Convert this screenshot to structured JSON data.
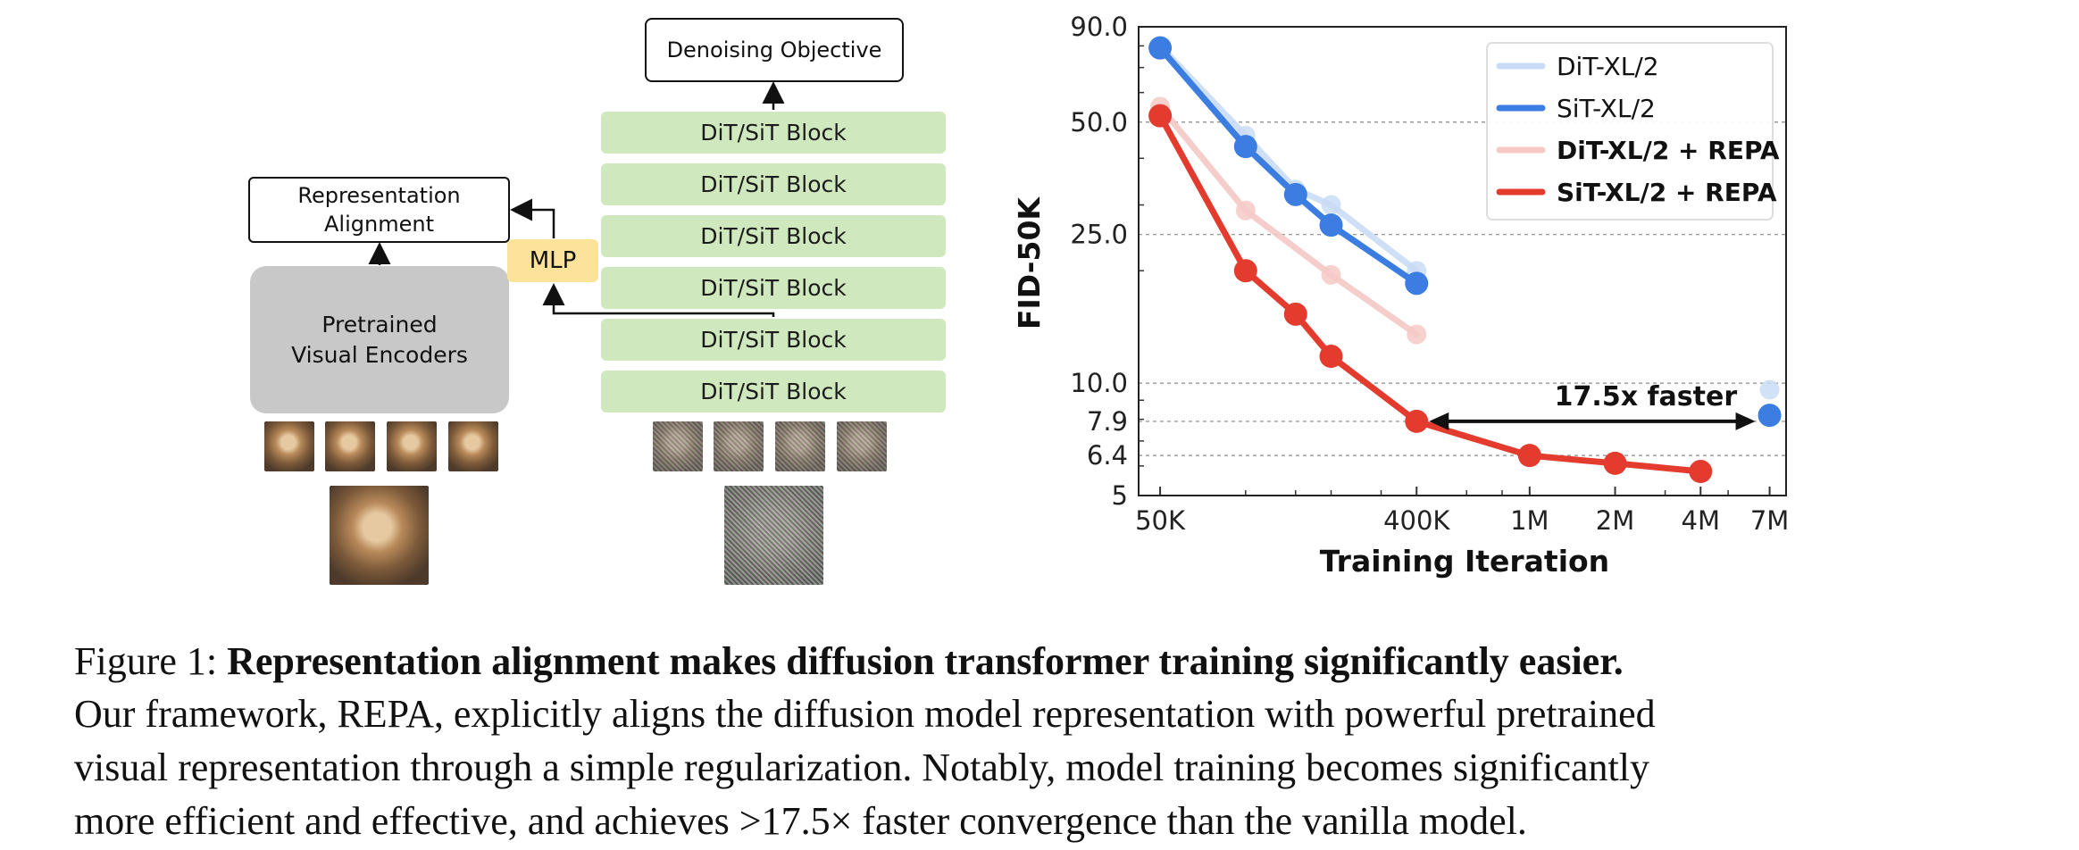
{
  "diagram": {
    "objective": "Denoising Objective",
    "blocks": [
      "DiT/SiT Block",
      "DiT/SiT Block",
      "DiT/SiT Block",
      "DiT/SiT Block",
      "DiT/SiT Block",
      "DiT/SiT Block"
    ],
    "representation_alignment": "Representation\nAlignment",
    "encoder": "Pretrained\nVisual Encoders",
    "mlp": "MLP"
  },
  "chart_data": {
    "type": "line",
    "xlabel": "Training Iteration",
    "ylabel": "FID-50K",
    "xscale": "log",
    "yscale": "log",
    "xlim": [
      42000,
      8000000
    ],
    "ylim": [
      5,
      90
    ],
    "x_ticks": [
      "50K",
      "400K",
      "1M",
      "2M",
      "4M",
      "7M"
    ],
    "x_tick_values": [
      50000,
      400000,
      1000000,
      2000000,
      4000000,
      7000000
    ],
    "y_ticks": [
      "90.0",
      "50.0",
      "25.0",
      "10.0",
      "7.9",
      "6.4",
      "5"
    ],
    "y_tick_values": [
      90,
      50,
      25,
      10,
      7.9,
      6.4,
      5
    ],
    "grid": true,
    "legend": "top-right",
    "series": [
      {
        "name": "DiT-XL/2",
        "color": "#c9dcf5",
        "x": [
          50000,
          100000,
          150000,
          200000,
          400000,
          7000000
        ],
        "y": [
          80,
          46,
          33,
          30,
          20,
          9.6
        ]
      },
      {
        "name": "SiT-XL/2",
        "color": "#3b7de0",
        "x": [
          50000,
          100000,
          150000,
          200000,
          400000,
          7000000
        ],
        "y": [
          79,
          43,
          32,
          26.5,
          18.5,
          8.2
        ]
      },
      {
        "name": "DiT-XL/2 + REPA",
        "color": "#f4c9c6",
        "x": [
          50000,
          100000,
          200000,
          400000
        ],
        "y": [
          55,
          29,
          19.5,
          13.5
        ]
      },
      {
        "name": "SiT-XL/2 + REPA",
        "color": "#e33b2e",
        "x": [
          50000,
          100000,
          150000,
          200000,
          400000,
          1000000,
          2000000,
          4000000
        ],
        "y": [
          52,
          20,
          15.3,
          11.8,
          7.9,
          6.4,
          6.1,
          5.8
        ]
      }
    ],
    "annotation": {
      "text": "17.5x faster",
      "from": [
        400000,
        7.9
      ],
      "to": [
        7000000,
        7.9
      ]
    }
  },
  "caption": {
    "label": "Figure 1:",
    "title": "Representation alignment makes diffusion transformer training significantly easier.",
    "line2": "Our framework, REPA, explicitly aligns the diffusion model representation with powerful pretrained",
    "line3": "visual representation through a simple regularization. Notably, model training becomes significantly",
    "line4": "more efficient and effective, and achieves >17.5× faster convergence than the vanilla model."
  }
}
